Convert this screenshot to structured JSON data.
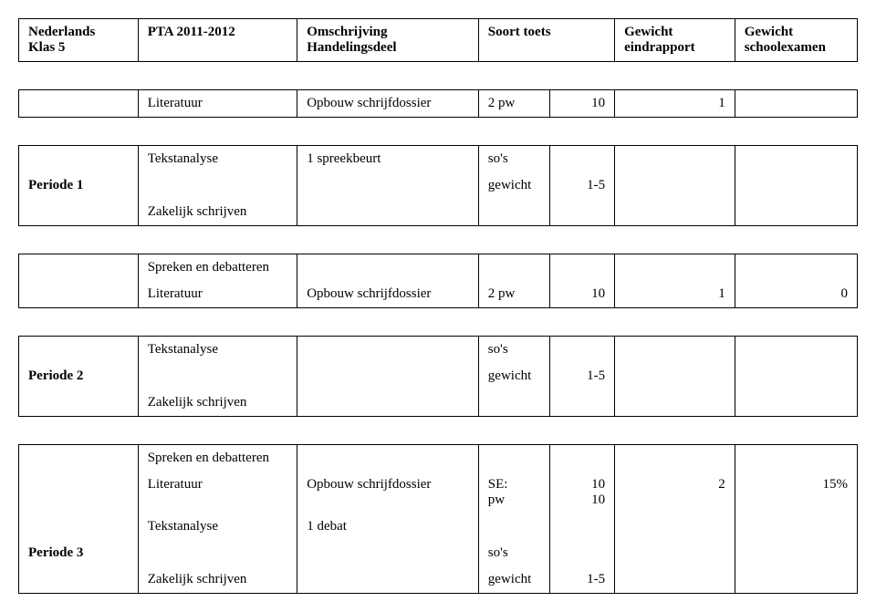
{
  "header": {
    "subject": "Nederlands",
    "klas": "Klas 5",
    "pta": "PTA 2011-2012",
    "omschrijving": "Omschrijving",
    "handelingsdeel": "Handelingsdeel",
    "soort_toets": "Soort toets",
    "gewicht_eind_l1": "Gewicht",
    "gewicht_eind_l2": "eindrapport",
    "gewicht_school_l1": "Gewicht",
    "gewicht_school_l2": "schoolexamen"
  },
  "rows": {
    "lit1": {
      "name": "Literatuur",
      "oms": "Opbouw schrijfdossier",
      "toets": "2 pw",
      "g1": "10",
      "g2": "1",
      "g3": ""
    },
    "p1": {
      "label": "Periode 1",
      "tekstanalyse": "Tekstanalyse",
      "spreekbeurt": "1 spreekbeurt",
      "sos": "so's",
      "gewicht": "gewicht",
      "gval": "1-5",
      "zakelijk": "Zakelijk schrijven"
    },
    "spreken1": "Spreken en debatteren",
    "lit2": {
      "name": "Literatuur",
      "oms": "Opbouw schrijfdossier",
      "toets": "2 pw",
      "g1": "10",
      "g2": "1",
      "g3": "0"
    },
    "p2": {
      "label": "Periode 2",
      "tekstanalyse": "Tekstanalyse",
      "sos": "so's",
      "gewicht": "gewicht",
      "gval": "1-5",
      "zakelijk": "Zakelijk schrijven"
    },
    "spreken2": "Spreken en debatteren",
    "lit3": {
      "name": "Literatuur",
      "oms": "Opbouw schrijfdossier",
      "toets_l1": "SE:",
      "toets_l2": "pw",
      "g1_l1": "10",
      "g1_l2": "10",
      "g2": "2",
      "g3": "15%"
    },
    "p3": {
      "label": "Periode 3",
      "tekstanalyse": "Tekstanalyse",
      "debat": "1 debat",
      "sos": "so's",
      "gewicht": "gewicht",
      "gval": "1-5",
      "zakelijk": "Zakelijk schrijven"
    }
  }
}
